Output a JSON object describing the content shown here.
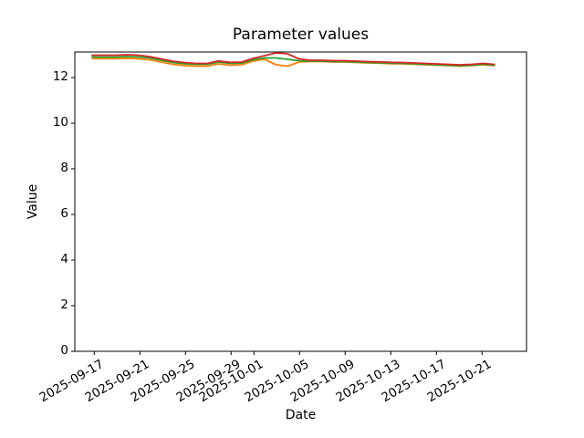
{
  "figure": {
    "background": "#ffffff",
    "spine_color": "#000000",
    "text_color": "#000000"
  },
  "chart_data": {
    "type": "line",
    "title": "Parameter values",
    "xlabel": "Date",
    "ylabel": "Value",
    "grid": false,
    "legend": "none",
    "ylim": [
      0,
      13.12
    ],
    "y_ticks": [
      0,
      2,
      4,
      6,
      8,
      10,
      12
    ],
    "x_tick_labels": [
      "2025-09-17",
      "2025-09-21",
      "2025-09-25",
      "2025-09-29",
      "2025-10-01",
      "2025-10-05",
      "2025-10-09",
      "2025-10-13",
      "2025-10-17",
      "2025-10-21"
    ],
    "x_tick_day_offsets": [
      0,
      4,
      8,
      12,
      14,
      18,
      22,
      26,
      30,
      34
    ],
    "x": [
      "2025-09-17",
      "2025-09-18",
      "2025-09-19",
      "2025-09-20",
      "2025-09-21",
      "2025-09-22",
      "2025-09-23",
      "2025-09-24",
      "2025-09-25",
      "2025-09-26",
      "2025-09-27",
      "2025-09-28",
      "2025-09-29",
      "2025-09-30",
      "2025-10-01",
      "2025-10-02",
      "2025-10-03",
      "2025-10-04",
      "2025-10-05",
      "2025-10-06",
      "2025-10-07",
      "2025-10-08",
      "2025-10-09",
      "2025-10-10",
      "2025-10-11",
      "2025-10-12",
      "2025-10-13",
      "2025-10-14",
      "2025-10-15",
      "2025-10-16",
      "2025-10-17",
      "2025-10-18",
      "2025-10-19",
      "2025-10-20",
      "2025-10-21",
      "2025-10-22"
    ],
    "series": [
      {
        "name": "orange",
        "color": "#ff7f0e",
        "values": [
          12.83,
          12.83,
          12.83,
          12.84,
          12.82,
          12.78,
          12.68,
          12.58,
          12.53,
          12.5,
          12.5,
          12.6,
          12.54,
          12.56,
          12.72,
          12.8,
          12.56,
          12.5,
          12.68,
          12.7,
          12.7,
          12.68,
          12.68,
          12.66,
          12.64,
          12.63,
          12.61,
          12.6,
          12.58,
          12.56,
          12.54,
          12.52,
          12.5,
          12.52,
          12.56,
          12.52
        ]
      },
      {
        "name": "green",
        "color": "#2ca02c",
        "values": [
          12.9,
          12.9,
          12.9,
          12.92,
          12.9,
          12.86,
          12.76,
          12.66,
          12.61,
          12.58,
          12.58,
          12.68,
          12.62,
          12.63,
          12.78,
          12.86,
          12.86,
          12.8,
          12.74,
          12.72,
          12.72,
          12.7,
          12.7,
          12.68,
          12.66,
          12.65,
          12.63,
          12.62,
          12.6,
          12.58,
          12.56,
          12.54,
          12.52,
          12.54,
          12.58,
          12.54
        ]
      },
      {
        "name": "red",
        "color": "#d62728",
        "values": [
          12.98,
          12.98,
          12.98,
          13.0,
          12.98,
          12.92,
          12.82,
          12.72,
          12.66,
          12.62,
          12.62,
          12.73,
          12.67,
          12.68,
          12.84,
          12.96,
          13.08,
          13.04,
          12.82,
          12.76,
          12.76,
          12.74,
          12.74,
          12.72,
          12.7,
          12.69,
          12.67,
          12.66,
          12.64,
          12.62,
          12.6,
          12.58,
          12.56,
          12.58,
          12.62,
          12.58
        ]
      }
    ]
  }
}
